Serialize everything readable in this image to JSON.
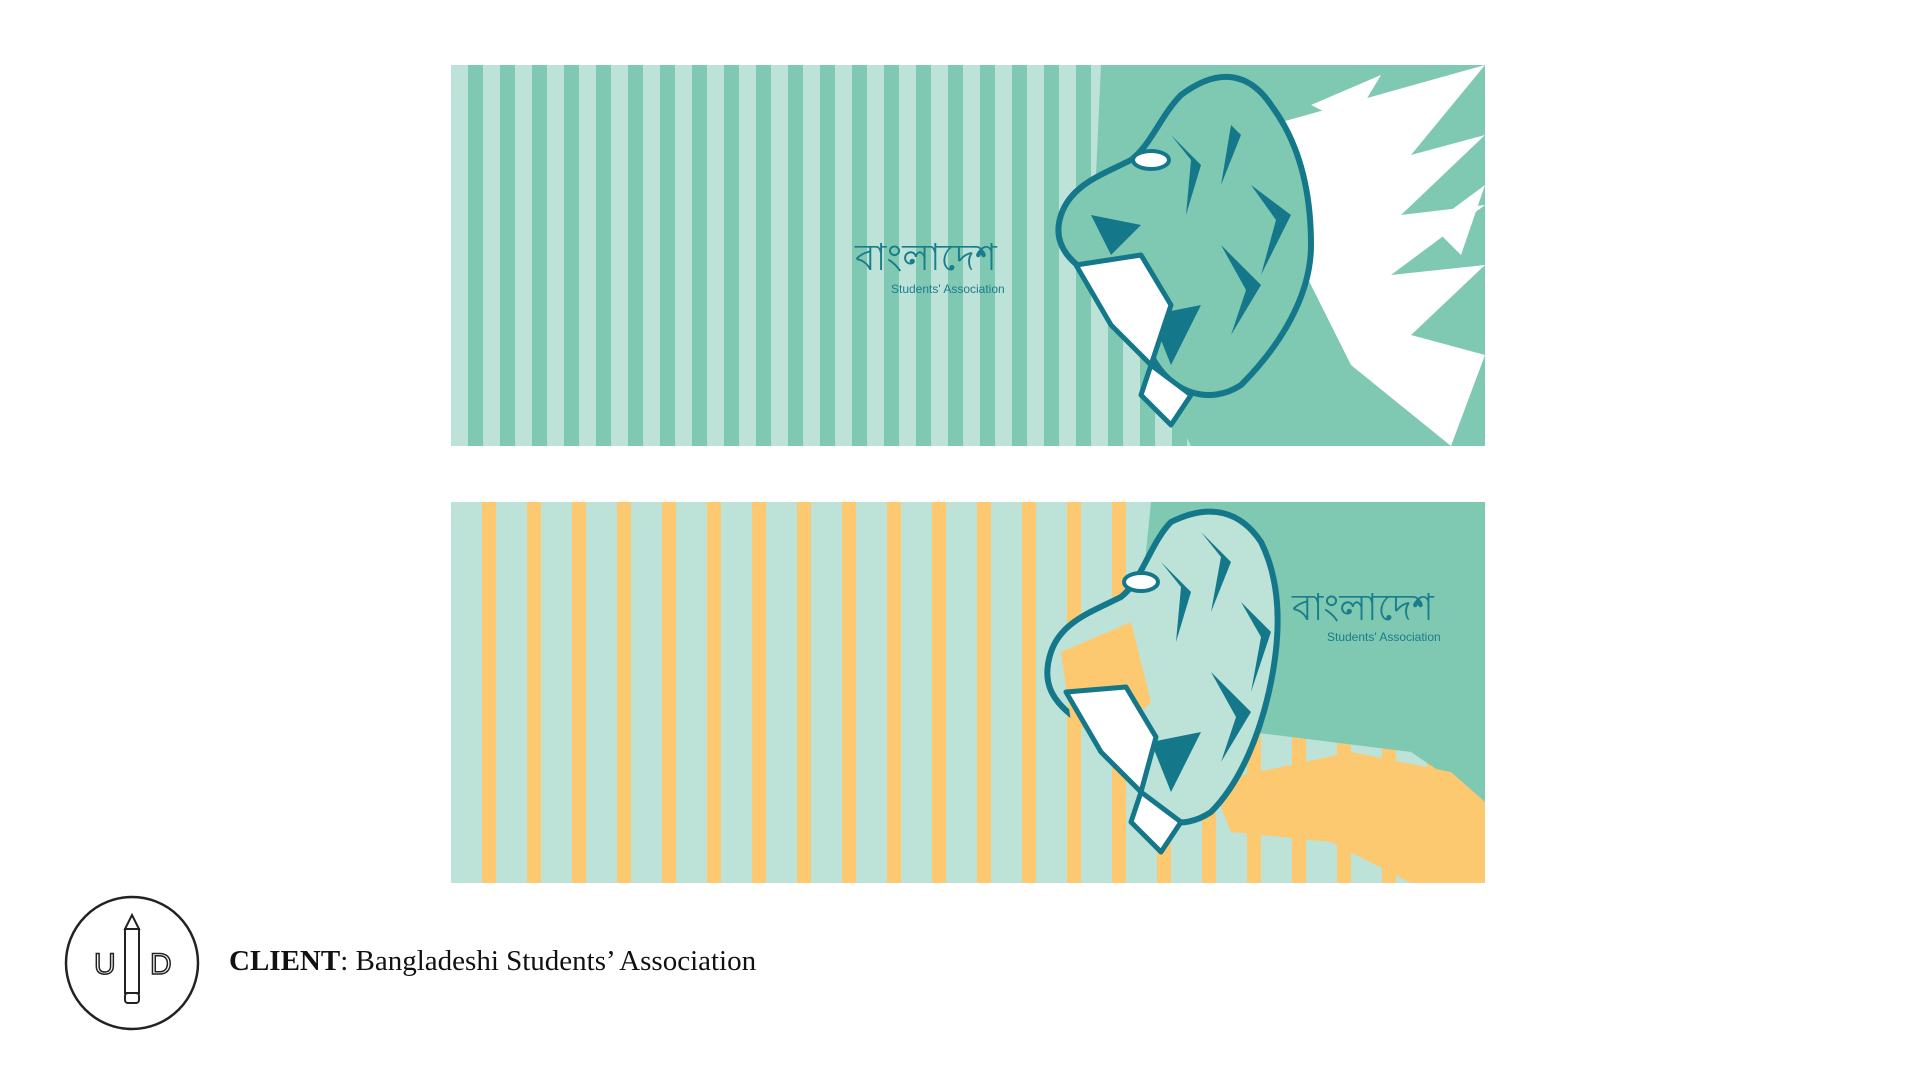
{
  "colors": {
    "page_background": "#ffffff",
    "stripe_light": "#bde3d9",
    "stripe_mid": "#7fc9b2",
    "stripe_yellow": "#fdc970",
    "tiger_ink": "#14788a",
    "text_teal": "#1a7d8c",
    "tiger_white": "#ffffff",
    "text_dark": "#111111"
  },
  "banners": [
    {
      "variant": "teal-stripes",
      "title": "বাংলাদেশ",
      "subtitle": "Students' Association"
    },
    {
      "variant": "yellow-stripes",
      "title": "বাংলাদেশ",
      "subtitle": "Students' Association"
    }
  ],
  "logo": {
    "left_letter": "U",
    "right_letter": "D",
    "icon": "pencil-icon"
  },
  "client": {
    "label": "CLIENT",
    "separator": ": ",
    "name": "Bangladeshi Students’ Association"
  }
}
